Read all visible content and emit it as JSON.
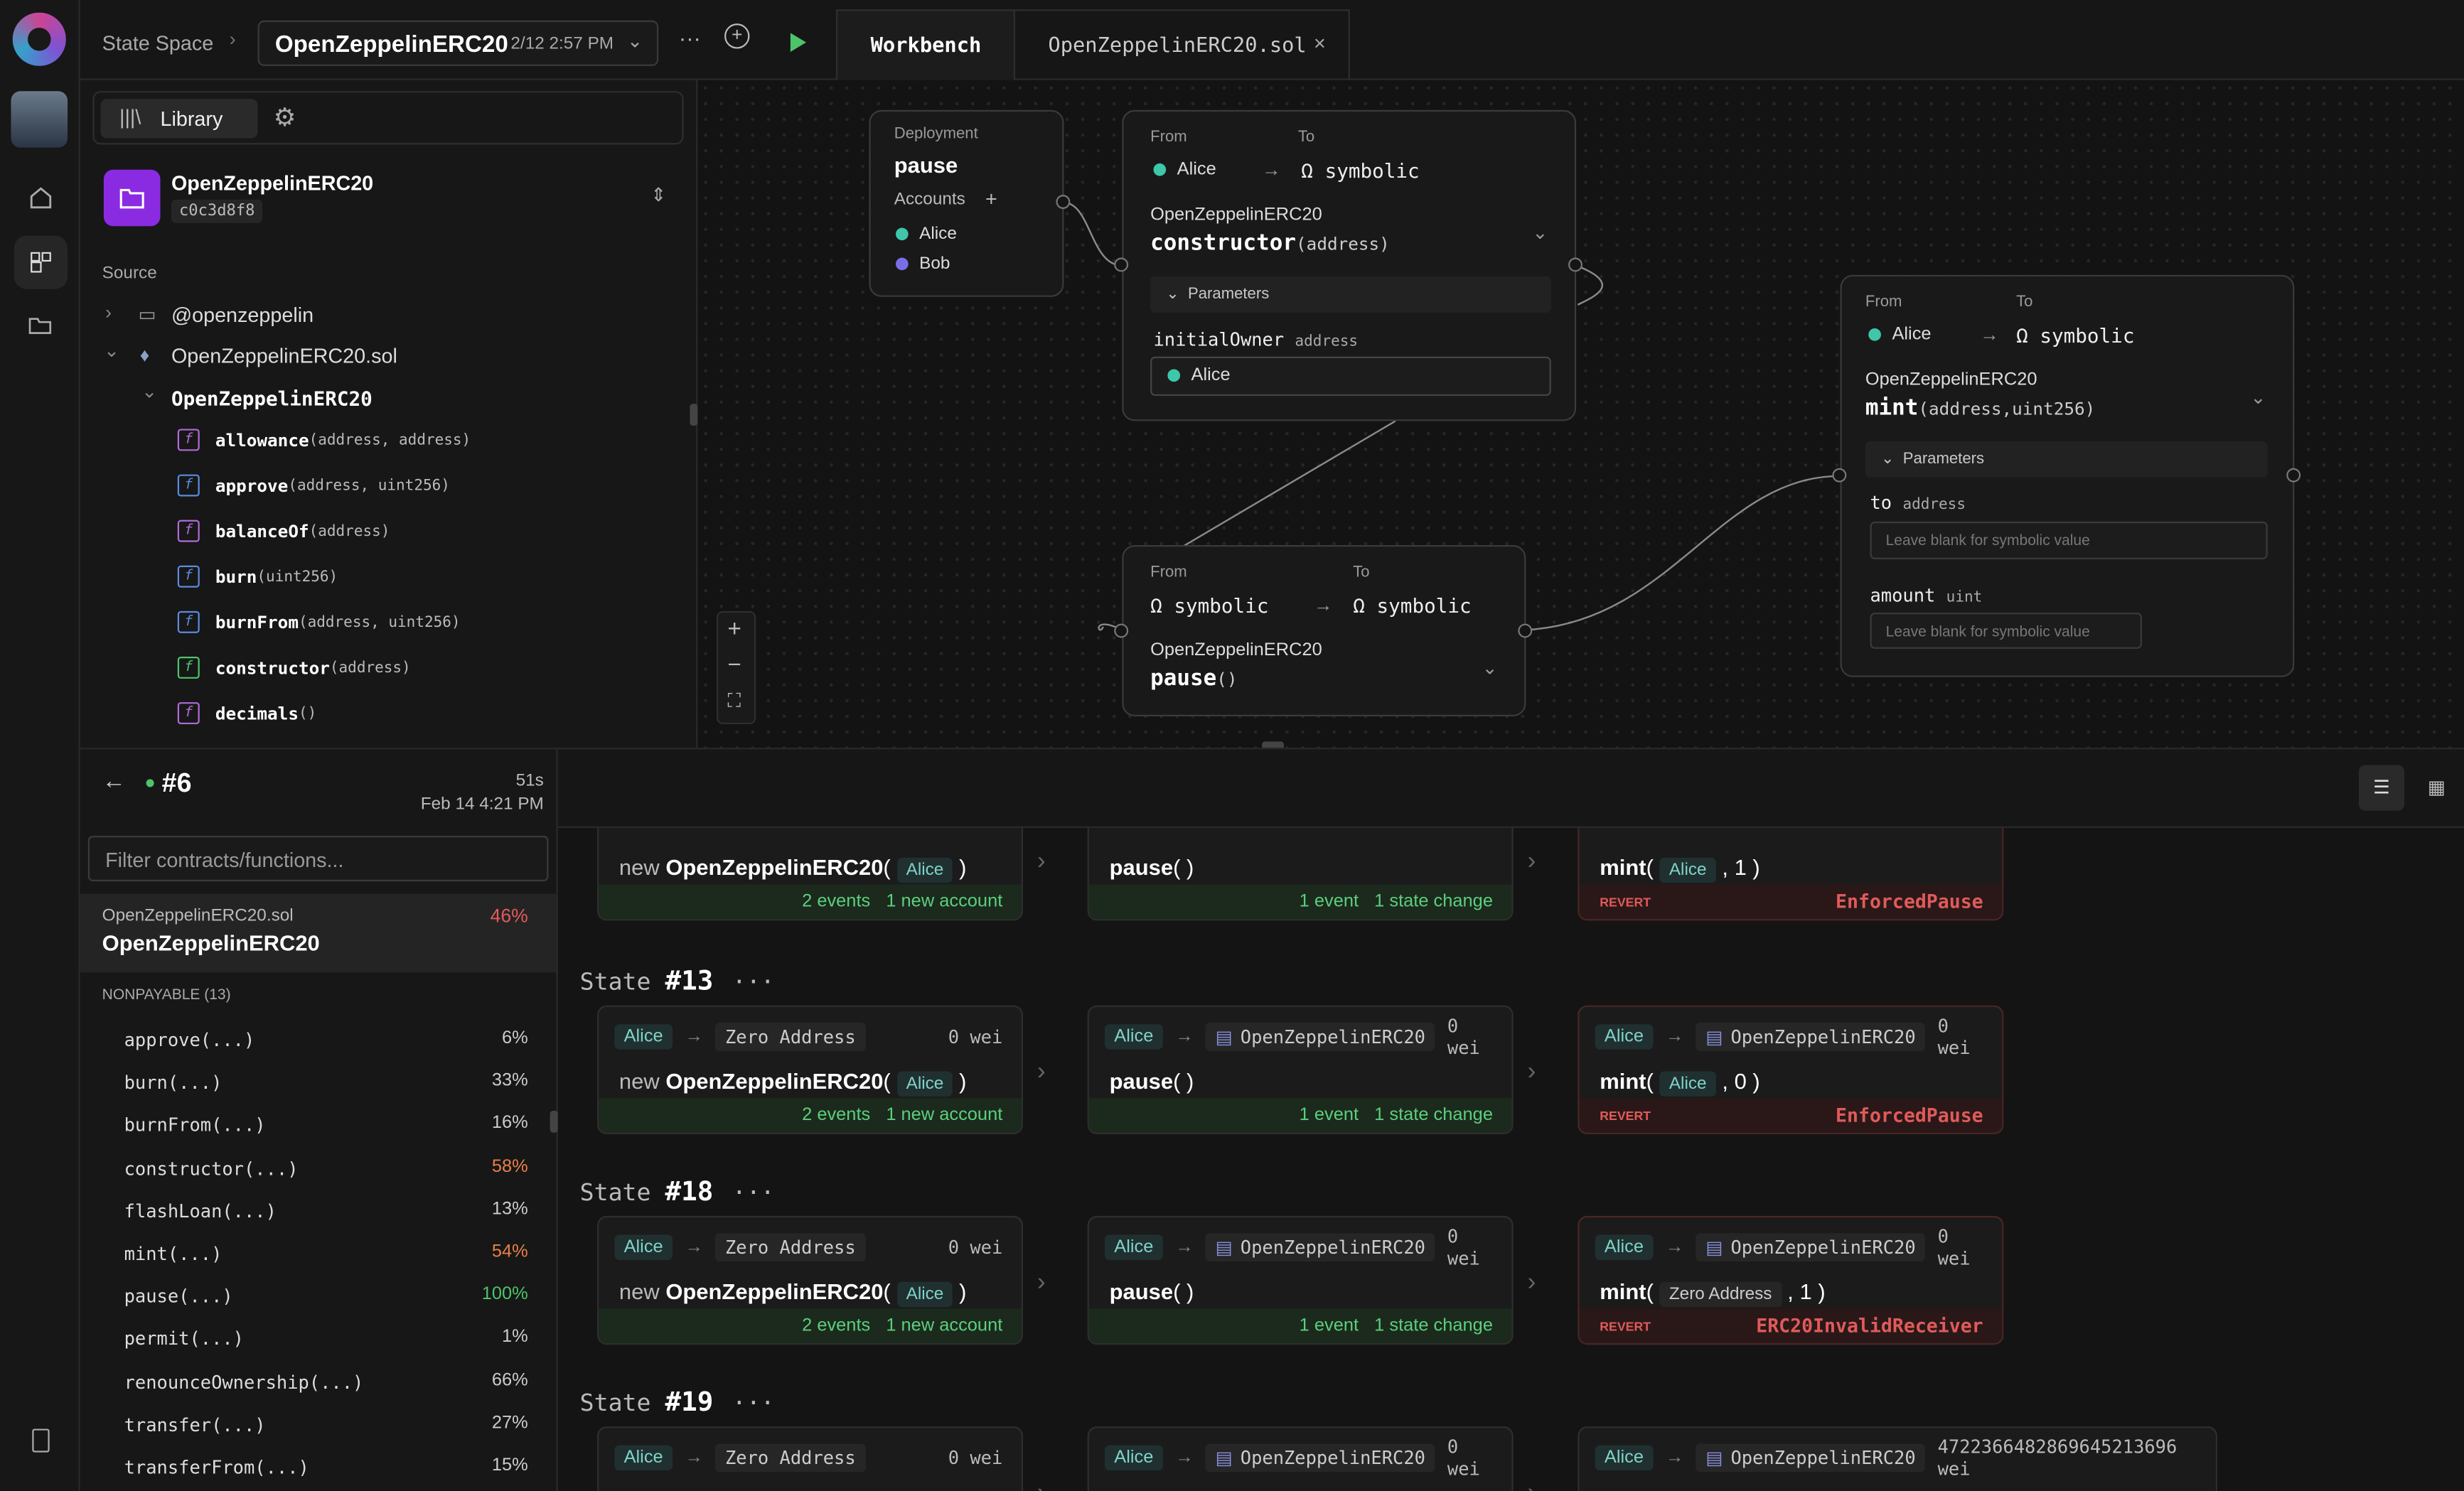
{
  "topbar": {
    "breadcrumb": "State Space",
    "project": "OpenZeppelinERC20",
    "date": "2/12 2:57 PM",
    "tabs": [
      {
        "label": "Workbench"
      },
      {
        "label": "OpenZeppelinERC20.sol"
      }
    ]
  },
  "library": {
    "tab_label": "Library",
    "contract_name": "OpenZeppelinERC20",
    "contract_hash": "c0c3d8f8",
    "source_label": "Source",
    "tree": {
      "folder": "@openzeppelin",
      "file": "OpenZeppelinERC20.sol",
      "contract": "OpenZeppelinERC20"
    },
    "functions": [
      {
        "name": "allowance",
        "args": "(address, address)",
        "color": "#b06bd8"
      },
      {
        "name": "approve",
        "args": "(address, uint256)",
        "color": "#5a8be0"
      },
      {
        "name": "balanceOf",
        "args": "(address)",
        "color": "#b06bd8"
      },
      {
        "name": "burn",
        "args": "(uint256)",
        "color": "#5a8be0"
      },
      {
        "name": "burnFrom",
        "args": "(address, uint256)",
        "color": "#5a8be0"
      },
      {
        "name": "constructor",
        "args": "(address)",
        "color": "#4ec46a"
      },
      {
        "name": "decimals",
        "args": "()",
        "color": "#b06bd8"
      }
    ]
  },
  "nodes": {
    "deploy": {
      "label": "Deployment",
      "fn": "pause",
      "accounts_label": "Accounts",
      "accounts": [
        {
          "name": "Alice",
          "color": "#3ec7a8"
        },
        {
          "name": "Bob",
          "color": "#7a6ee8"
        }
      ]
    },
    "constructor": {
      "from_label": "From",
      "to_label": "To",
      "from": "Alice",
      "to": "symbolic",
      "contract": "OpenZeppelinERC20",
      "fn": "constructor",
      "args": "(address)",
      "params_label": "Parameters",
      "param_name": "initialOwner",
      "param_type": "address",
      "param_value": "Alice"
    },
    "mint": {
      "from_label": "From",
      "to_label": "To",
      "from": "Alice",
      "to": "symbolic",
      "contract": "OpenZeppelinERC20",
      "fn": "mint",
      "args": "(address,uint256)",
      "params_label": "Parameters",
      "p1_name": "to",
      "p1_type": "address",
      "p1_placeholder": "Leave blank for symbolic value",
      "p2_name": "amount",
      "p2_type": "uint",
      "p2_placeholder": "Leave blank for symbolic value"
    },
    "pause": {
      "from_label": "From",
      "to_label": "To",
      "from": "symbolic",
      "to": "symbolic",
      "contract": "OpenZeppelinERC20",
      "fn": "pause",
      "args": "()"
    }
  },
  "run": {
    "id": "#6",
    "duration": "51s",
    "date": "Feb 14 4:21 PM",
    "filter_placeholder": "Filter contracts/functions...",
    "file": "OpenZeppelinERC20.sol",
    "contract": "OpenZeppelinERC20",
    "coverage": "46%",
    "section": "NONPAYABLE (13)",
    "functions": [
      {
        "name": "approve(...)",
        "pct": "6%",
        "color": "#cccccc"
      },
      {
        "name": "burn(...)",
        "pct": "33%",
        "color": "#cccccc"
      },
      {
        "name": "burnFrom(...)",
        "pct": "16%",
        "color": "#cccccc"
      },
      {
        "name": "constructor(...)",
        "pct": "58%",
        "color": "#e8804a"
      },
      {
        "name": "flashLoan(...)",
        "pct": "13%",
        "color": "#cccccc"
      },
      {
        "name": "mint(...)",
        "pct": "54%",
        "color": "#e8804a"
      },
      {
        "name": "pause(...)",
        "pct": "100%",
        "color": "#4ec46a"
      },
      {
        "name": "permit(...)",
        "pct": "1%",
        "color": "#cccccc"
      },
      {
        "name": "renounceOwnership(...)",
        "pct": "66%",
        "color": "#cccccc"
      },
      {
        "name": "transfer(...)",
        "pct": "27%",
        "color": "#cccccc"
      },
      {
        "name": "transferFrom(...)",
        "pct": "15%",
        "color": "#cccccc"
      }
    ]
  },
  "states": [
    {
      "label": "State",
      "num": "#13",
      "tx": [
        {
          "from": "Alice",
          "to": "Zero Address",
          "value": "0 wei",
          "call": "new",
          "fn": "OpenZeppelinERC20",
          "arg": "Alice",
          "ft1": "2 events",
          "ft2": "1 new account"
        },
        {
          "from": "Alice",
          "to": "OpenZeppelinERC20",
          "value": "0 wei",
          "fn": "pause",
          "ft1": "1 event",
          "ft2": "1 state change"
        },
        {
          "from": "Alice",
          "to": "OpenZeppelinERC20",
          "value": "0 wei",
          "fn": "mint",
          "arg": "Alice",
          "arg2": "0",
          "revert": "REVERT",
          "err": "EnforcedPause"
        }
      ]
    },
    {
      "label": "State",
      "num": "#18",
      "tx": [
        {
          "from": "Alice",
          "to": "Zero Address",
          "value": "0 wei",
          "call": "new",
          "fn": "OpenZeppelinERC20",
          "arg": "Alice",
          "ft1": "2 events",
          "ft2": "1 new account"
        },
        {
          "from": "Alice",
          "to": "OpenZeppelinERC20",
          "value": "0 wei",
          "fn": "pause",
          "ft1": "1 event",
          "ft2": "1 state change"
        },
        {
          "from": "Alice",
          "to": "OpenZeppelinERC20",
          "value": "0 wei",
          "fn": "mint",
          "arg": "Zero Address",
          "arg2": "1",
          "revert": "REVERT",
          "err": "ERC20InvalidReceiver"
        }
      ]
    },
    {
      "label": "State",
      "num": "#19",
      "tx": [
        {
          "from": "Alice",
          "to": "Zero Address",
          "value": "0 wei"
        },
        {
          "from": "Alice",
          "to": "OpenZeppelinERC20",
          "value": "0 wei"
        },
        {
          "from": "Alice",
          "to": "OpenZeppelinERC20",
          "value": "4722366482869645213696 wei"
        }
      ]
    }
  ],
  "prev": {
    "tx": [
      {
        "fn": "OpenZeppelinERC20",
        "call": "new",
        "arg": "Alice",
        "ft1": "2 events",
        "ft2": "1 new account"
      },
      {
        "fn": "pause",
        "ft1": "1 event",
        "ft2": "1 state change"
      },
      {
        "fn": "mint",
        "arg": "Alice",
        "arg2": "1",
        "revert": "REVERT",
        "err": "EnforcedPause"
      }
    ]
  }
}
